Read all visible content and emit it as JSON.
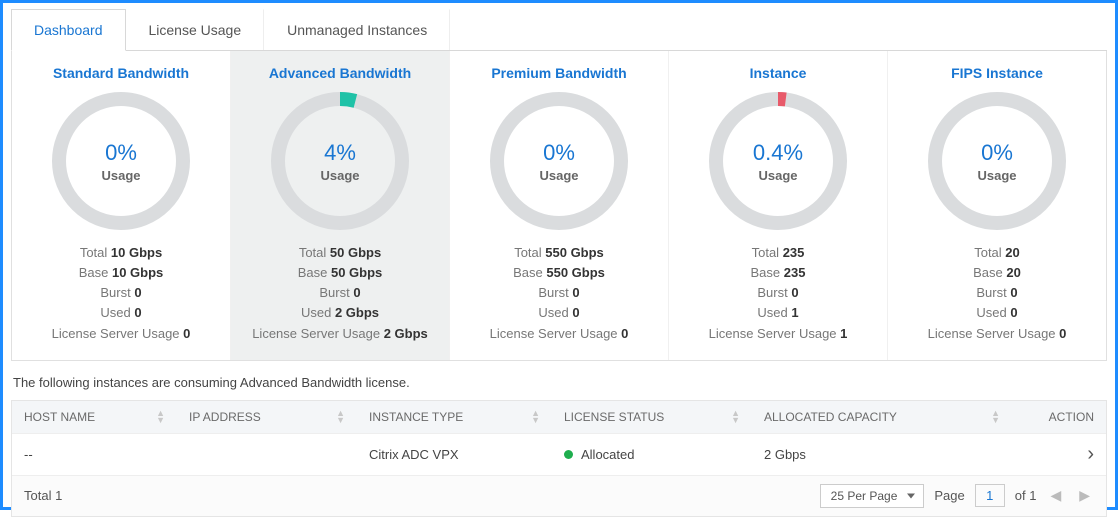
{
  "colors": {
    "frame_border": "#1e8cff",
    "link_blue": "#1976d2",
    "ring_bg": "#dadcde",
    "ring_accent_teal": "#1fc2a7",
    "ring_accent_red": "#e85a6a",
    "status_green": "#1fae4e",
    "header_bg": "#f4f6f8"
  },
  "tabs": [
    {
      "label": "Dashboard",
      "active": true
    },
    {
      "label": "License Usage",
      "active": false
    },
    {
      "label": "Unmanaged Instances",
      "active": false
    }
  ],
  "usage_label": "Usage",
  "stat_labels": {
    "total": "Total",
    "base": "Base",
    "burst": "Burst",
    "used": "Used",
    "lsu": "License Server Usage"
  },
  "cards": [
    {
      "id": "standard-bandwidth",
      "title": "Standard Bandwidth",
      "percent_text": "0%",
      "percent_value": 0,
      "accent_color": "#1fc2a7",
      "selected": false,
      "stats": {
        "total": "10 Gbps",
        "base": "10 Gbps",
        "burst": "0",
        "used": "0",
        "lsu": "0"
      }
    },
    {
      "id": "advanced-bandwidth",
      "title": "Advanced Bandwidth",
      "percent_text": "4%",
      "percent_value": 4,
      "accent_color": "#1fc2a7",
      "selected": true,
      "stats": {
        "total": "50 Gbps",
        "base": "50 Gbps",
        "burst": "0",
        "used": "2 Gbps",
        "lsu": "2 Gbps"
      }
    },
    {
      "id": "premium-bandwidth",
      "title": "Premium Bandwidth",
      "percent_text": "0%",
      "percent_value": 0,
      "accent_color": "#1fc2a7",
      "selected": false,
      "stats": {
        "total": "550 Gbps",
        "base": "550 Gbps",
        "burst": "0",
        "used": "0",
        "lsu": "0"
      }
    },
    {
      "id": "instance",
      "title": "Instance",
      "percent_text": "0.4%",
      "percent_value": 0.4,
      "accent_color": "#e85a6a",
      "selected": false,
      "stats": {
        "total": "235",
        "base": "235",
        "burst": "0",
        "used": "1",
        "lsu": "1"
      }
    },
    {
      "id": "fips-instance",
      "title": "FIPS Instance",
      "percent_text": "0%",
      "percent_value": 0,
      "accent_color": "#1fc2a7",
      "selected": false,
      "stats": {
        "total": "20",
        "base": "20",
        "burst": "0",
        "used": "0",
        "lsu": "0"
      }
    }
  ],
  "description": "The following instances are consuming Advanced Bandwidth license.",
  "table": {
    "columns": {
      "host": "HOST NAME",
      "ip": "IP ADDRESS",
      "type": "INSTANCE TYPE",
      "status": "LICENSE STATUS",
      "capacity": "ALLOCATED CAPACITY",
      "action": "ACTION"
    },
    "rows": [
      {
        "host": "--",
        "ip": "",
        "type": "Citrix ADC VPX",
        "status": "Allocated",
        "capacity": "2 Gbps"
      }
    ],
    "footer": {
      "total_label": "Total",
      "total_value": "1",
      "per_page": "25 Per Page",
      "page_label": "Page",
      "page_num": "1",
      "of_label": "of 1"
    }
  },
  "donut_style": {
    "outer_radius": 62,
    "stroke_width": 14,
    "ring_bg": "#dadcde",
    "circumference": 389.56
  }
}
